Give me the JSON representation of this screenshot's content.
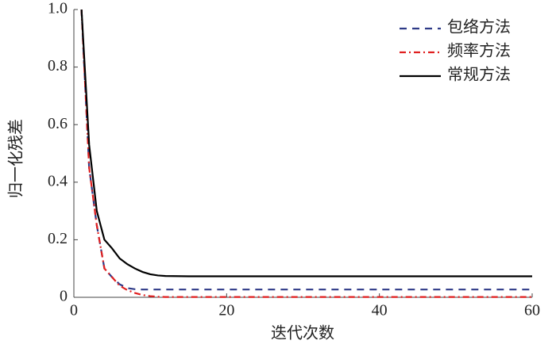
{
  "chart_data": {
    "type": "line",
    "xlabel": "迭代次数",
    "ylabel": "归一化残差",
    "x": [
      1,
      2,
      3,
      4,
      5,
      6,
      7,
      8,
      9,
      10,
      11,
      12,
      15,
      20,
      30,
      40,
      50,
      60
    ],
    "series": [
      {
        "name": "包络方法",
        "color": "#2e3a87",
        "linestyle": "dashed",
        "values": [
          1.0,
          0.45,
          0.25,
          0.1,
          0.07,
          0.045,
          0.032,
          0.028,
          0.027,
          0.027,
          0.027,
          0.027,
          0.027,
          0.027,
          0.027,
          0.027,
          0.027,
          0.027
        ]
      },
      {
        "name": "频率方法",
        "color": "#e02020",
        "linestyle": "dashdot",
        "values": [
          1.0,
          0.45,
          0.25,
          0.1,
          0.07,
          0.04,
          0.025,
          0.015,
          0.008,
          0.004,
          0.002,
          0.001,
          0.001,
          0.001,
          0.001,
          0.001,
          0.001,
          0.001
        ]
      },
      {
        "name": "常规方法",
        "color": "#000000",
        "linestyle": "solid",
        "values": [
          1.0,
          0.53,
          0.3,
          0.2,
          0.17,
          0.135,
          0.115,
          0.1,
          0.088,
          0.08,
          0.076,
          0.074,
          0.073,
          0.073,
          0.073,
          0.073,
          0.073,
          0.073
        ]
      }
    ],
    "xlim": [
      0,
      60
    ],
    "xticks": [
      0,
      20,
      40,
      60
    ],
    "ylim": [
      0,
      1
    ],
    "yticks": [
      0,
      0.2,
      0.4,
      0.6,
      0.8,
      {
        "value": 1,
        "label": "1.0"
      }
    ],
    "legend": "upper right"
  }
}
